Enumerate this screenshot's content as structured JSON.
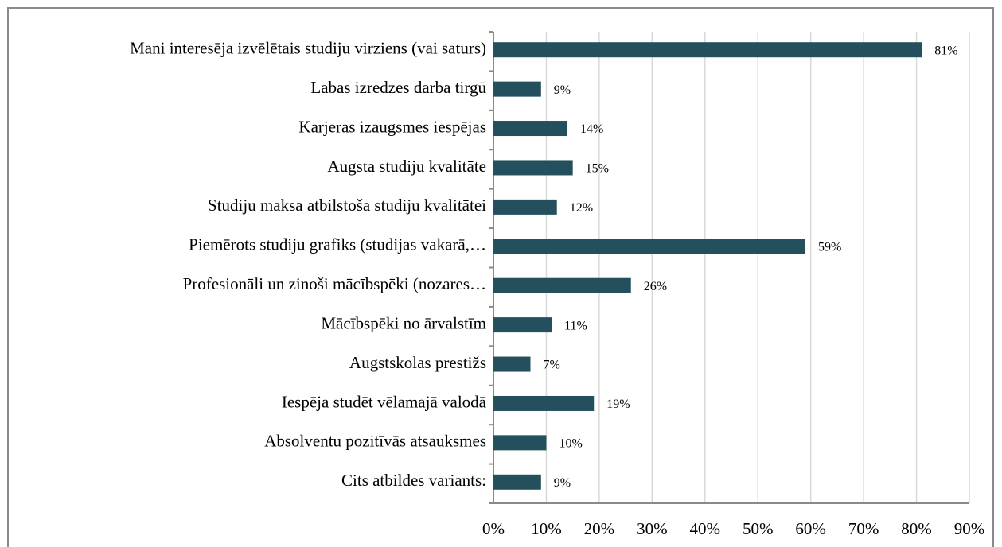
{
  "chart_data": {
    "type": "bar",
    "orientation": "horizontal",
    "categories": [
      "Mani interesēja izvēlētais studiju virziens (vai saturs)",
      "Labas izredzes darba tirgū",
      "Karjeras izaugsmes iespējas",
      "Augsta studiju kvalitāte",
      "Studiju maksa atbilstoša studiju kvalitātei",
      "Piemērots studiju grafiks (studijas vakarā,…",
      "Profesionāli un zinoši mācībspēki (nozares…",
      "Mācībspēki no ārvalstīm",
      "Augstskolas prestižs",
      "Iespēja studēt vēlamajā valodā",
      "Absolventu pozitīvās atsauksmes",
      "Cits atbildes variants:"
    ],
    "values": [
      81,
      9,
      14,
      15,
      12,
      59,
      26,
      11,
      7,
      19,
      10,
      9
    ],
    "value_labels": [
      "81%",
      "9%",
      "14%",
      "15%",
      "12%",
      "59%",
      "26%",
      "11%",
      "7%",
      "19%",
      "10%",
      "9%"
    ],
    "color": "#244f5c",
    "xlim": [
      0,
      90
    ],
    "xticks": [
      {
        "value": 0,
        "label": "0%"
      },
      {
        "value": 10,
        "label": "10%"
      },
      {
        "value": 20,
        "label": "20%"
      },
      {
        "value": 30,
        "label": "30%"
      },
      {
        "value": 40,
        "label": "40%"
      },
      {
        "value": 50,
        "label": "50%"
      },
      {
        "value": 60,
        "label": "60%"
      },
      {
        "value": 70,
        "label": "70%"
      },
      {
        "value": 80,
        "label": "80%"
      },
      {
        "value": 90,
        "label": "90%"
      }
    ],
    "grid": true
  }
}
